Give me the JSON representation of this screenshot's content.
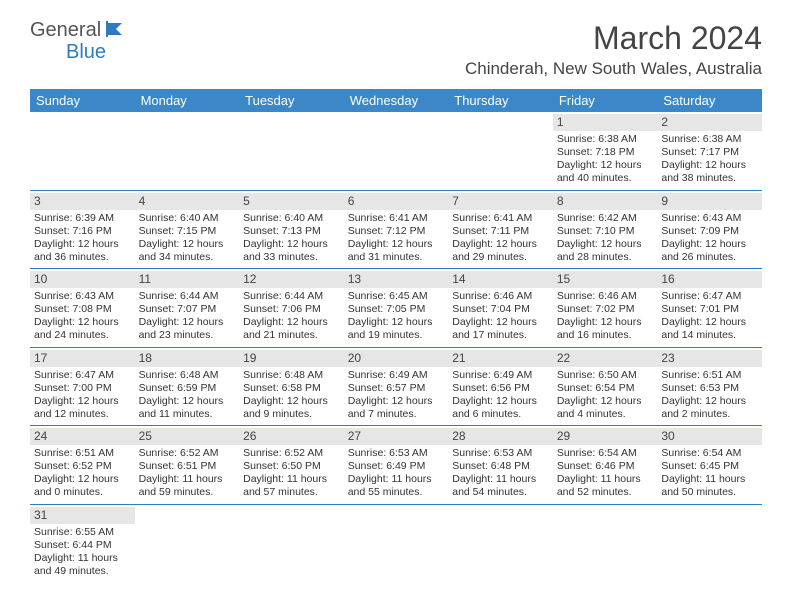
{
  "logo": {
    "general": "General",
    "blue": "Blue"
  },
  "title": "March 2024",
  "location": "Chinderah, New South Wales, Australia",
  "colors": {
    "header_bg": "#3b87c8",
    "header_text": "#ffffff",
    "border": "#2f7bbf",
    "daynum_bg": "#e6e6e6",
    "text": "#333333"
  },
  "day_headers": [
    "Sunday",
    "Monday",
    "Tuesday",
    "Wednesday",
    "Thursday",
    "Friday",
    "Saturday"
  ],
  "weeks": [
    [
      null,
      null,
      null,
      null,
      null,
      {
        "n": "1",
        "sr": "Sunrise: 6:38 AM",
        "ss": "Sunset: 7:18 PM",
        "d1": "Daylight: 12 hours",
        "d2": "and 40 minutes."
      },
      {
        "n": "2",
        "sr": "Sunrise: 6:38 AM",
        "ss": "Sunset: 7:17 PM",
        "d1": "Daylight: 12 hours",
        "d2": "and 38 minutes."
      }
    ],
    [
      {
        "n": "3",
        "sr": "Sunrise: 6:39 AM",
        "ss": "Sunset: 7:16 PM",
        "d1": "Daylight: 12 hours",
        "d2": "and 36 minutes."
      },
      {
        "n": "4",
        "sr": "Sunrise: 6:40 AM",
        "ss": "Sunset: 7:15 PM",
        "d1": "Daylight: 12 hours",
        "d2": "and 34 minutes."
      },
      {
        "n": "5",
        "sr": "Sunrise: 6:40 AM",
        "ss": "Sunset: 7:13 PM",
        "d1": "Daylight: 12 hours",
        "d2": "and 33 minutes."
      },
      {
        "n": "6",
        "sr": "Sunrise: 6:41 AM",
        "ss": "Sunset: 7:12 PM",
        "d1": "Daylight: 12 hours",
        "d2": "and 31 minutes."
      },
      {
        "n": "7",
        "sr": "Sunrise: 6:41 AM",
        "ss": "Sunset: 7:11 PM",
        "d1": "Daylight: 12 hours",
        "d2": "and 29 minutes."
      },
      {
        "n": "8",
        "sr": "Sunrise: 6:42 AM",
        "ss": "Sunset: 7:10 PM",
        "d1": "Daylight: 12 hours",
        "d2": "and 28 minutes."
      },
      {
        "n": "9",
        "sr": "Sunrise: 6:43 AM",
        "ss": "Sunset: 7:09 PM",
        "d1": "Daylight: 12 hours",
        "d2": "and 26 minutes."
      }
    ],
    [
      {
        "n": "10",
        "sr": "Sunrise: 6:43 AM",
        "ss": "Sunset: 7:08 PM",
        "d1": "Daylight: 12 hours",
        "d2": "and 24 minutes."
      },
      {
        "n": "11",
        "sr": "Sunrise: 6:44 AM",
        "ss": "Sunset: 7:07 PM",
        "d1": "Daylight: 12 hours",
        "d2": "and 23 minutes."
      },
      {
        "n": "12",
        "sr": "Sunrise: 6:44 AM",
        "ss": "Sunset: 7:06 PM",
        "d1": "Daylight: 12 hours",
        "d2": "and 21 minutes."
      },
      {
        "n": "13",
        "sr": "Sunrise: 6:45 AM",
        "ss": "Sunset: 7:05 PM",
        "d1": "Daylight: 12 hours",
        "d2": "and 19 minutes."
      },
      {
        "n": "14",
        "sr": "Sunrise: 6:46 AM",
        "ss": "Sunset: 7:04 PM",
        "d1": "Daylight: 12 hours",
        "d2": "and 17 minutes."
      },
      {
        "n": "15",
        "sr": "Sunrise: 6:46 AM",
        "ss": "Sunset: 7:02 PM",
        "d1": "Daylight: 12 hours",
        "d2": "and 16 minutes."
      },
      {
        "n": "16",
        "sr": "Sunrise: 6:47 AM",
        "ss": "Sunset: 7:01 PM",
        "d1": "Daylight: 12 hours",
        "d2": "and 14 minutes."
      }
    ],
    [
      {
        "n": "17",
        "sr": "Sunrise: 6:47 AM",
        "ss": "Sunset: 7:00 PM",
        "d1": "Daylight: 12 hours",
        "d2": "and 12 minutes."
      },
      {
        "n": "18",
        "sr": "Sunrise: 6:48 AM",
        "ss": "Sunset: 6:59 PM",
        "d1": "Daylight: 12 hours",
        "d2": "and 11 minutes."
      },
      {
        "n": "19",
        "sr": "Sunrise: 6:48 AM",
        "ss": "Sunset: 6:58 PM",
        "d1": "Daylight: 12 hours",
        "d2": "and 9 minutes."
      },
      {
        "n": "20",
        "sr": "Sunrise: 6:49 AM",
        "ss": "Sunset: 6:57 PM",
        "d1": "Daylight: 12 hours",
        "d2": "and 7 minutes."
      },
      {
        "n": "21",
        "sr": "Sunrise: 6:49 AM",
        "ss": "Sunset: 6:56 PM",
        "d1": "Daylight: 12 hours",
        "d2": "and 6 minutes."
      },
      {
        "n": "22",
        "sr": "Sunrise: 6:50 AM",
        "ss": "Sunset: 6:54 PM",
        "d1": "Daylight: 12 hours",
        "d2": "and 4 minutes."
      },
      {
        "n": "23",
        "sr": "Sunrise: 6:51 AM",
        "ss": "Sunset: 6:53 PM",
        "d1": "Daylight: 12 hours",
        "d2": "and 2 minutes."
      }
    ],
    [
      {
        "n": "24",
        "sr": "Sunrise: 6:51 AM",
        "ss": "Sunset: 6:52 PM",
        "d1": "Daylight: 12 hours",
        "d2": "and 0 minutes."
      },
      {
        "n": "25",
        "sr": "Sunrise: 6:52 AM",
        "ss": "Sunset: 6:51 PM",
        "d1": "Daylight: 11 hours",
        "d2": "and 59 minutes."
      },
      {
        "n": "26",
        "sr": "Sunrise: 6:52 AM",
        "ss": "Sunset: 6:50 PM",
        "d1": "Daylight: 11 hours",
        "d2": "and 57 minutes."
      },
      {
        "n": "27",
        "sr": "Sunrise: 6:53 AM",
        "ss": "Sunset: 6:49 PM",
        "d1": "Daylight: 11 hours",
        "d2": "and 55 minutes."
      },
      {
        "n": "28",
        "sr": "Sunrise: 6:53 AM",
        "ss": "Sunset: 6:48 PM",
        "d1": "Daylight: 11 hours",
        "d2": "and 54 minutes."
      },
      {
        "n": "29",
        "sr": "Sunrise: 6:54 AM",
        "ss": "Sunset: 6:46 PM",
        "d1": "Daylight: 11 hours",
        "d2": "and 52 minutes."
      },
      {
        "n": "30",
        "sr": "Sunrise: 6:54 AM",
        "ss": "Sunset: 6:45 PM",
        "d1": "Daylight: 11 hours",
        "d2": "and 50 minutes."
      }
    ],
    [
      {
        "n": "31",
        "sr": "Sunrise: 6:55 AM",
        "ss": "Sunset: 6:44 PM",
        "d1": "Daylight: 11 hours",
        "d2": "and 49 minutes."
      },
      null,
      null,
      null,
      null,
      null,
      null
    ]
  ]
}
